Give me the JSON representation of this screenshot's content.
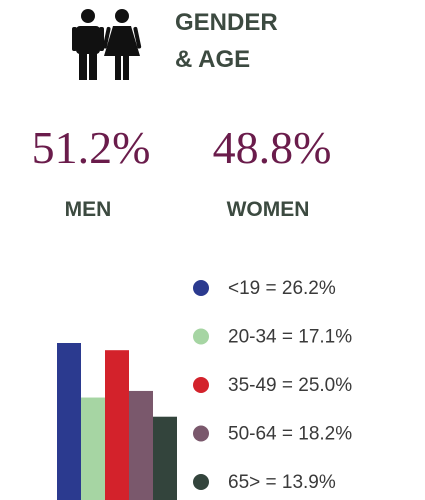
{
  "title_lines": [
    "GENDER",
    "& AGE"
  ],
  "gender": [
    {
      "percent": "51.2%",
      "label": "MEN"
    },
    {
      "percent": "48.8%",
      "label": "WOMEN"
    }
  ],
  "chart_data": {
    "type": "bar",
    "categories": [
      "<19 = 26.2%",
      "20-34 = 17.1%",
      "35-49 = 25.0%",
      "50-64 = 18.2%",
      "65> = 13.9%"
    ],
    "values": [
      26.2,
      17.1,
      25.0,
      18.2,
      13.9
    ],
    "colors": [
      "#2b3a8f",
      "#a6d5a3",
      "#d3222b",
      "#7a586c",
      "#33443c"
    ]
  }
}
